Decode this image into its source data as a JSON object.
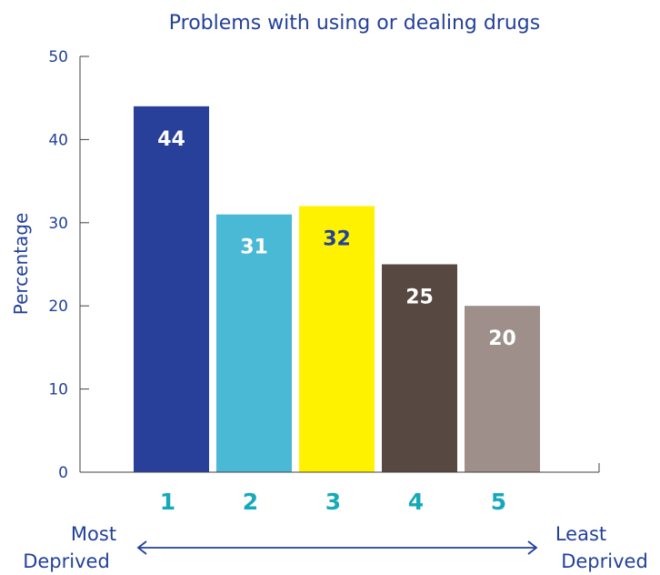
{
  "chart_data": {
    "type": "bar",
    "title": "Problems with using or dealing drugs",
    "ylabel": "Percentage",
    "xlabel": "",
    "ylim": [
      0,
      50
    ],
    "yticks": [
      0,
      10,
      20,
      30,
      40,
      50
    ],
    "categories": [
      "1",
      "2",
      "3",
      "4",
      "5"
    ],
    "values": [
      44,
      31,
      32,
      25,
      20
    ],
    "data_labels": [
      "44",
      "31",
      "32",
      "25",
      "20"
    ],
    "bar_colors": [
      "#29409b",
      "#4ab9d5",
      "#fff200",
      "#574841",
      "#9e8f8a"
    ],
    "data_label_colors": [
      "#ffffff",
      "#ffffff",
      "#23419a",
      "#ffffff",
      "#ffffff"
    ],
    "category_label_color": "#15aab9",
    "axis_color": "#404040",
    "text_color": "#23419a",
    "grid": false,
    "annotations": {
      "left_line1": "Most",
      "left_line2": "Deprived",
      "right_line1": "Least",
      "right_line2": "Deprived",
      "arrow": "double-headed"
    }
  }
}
